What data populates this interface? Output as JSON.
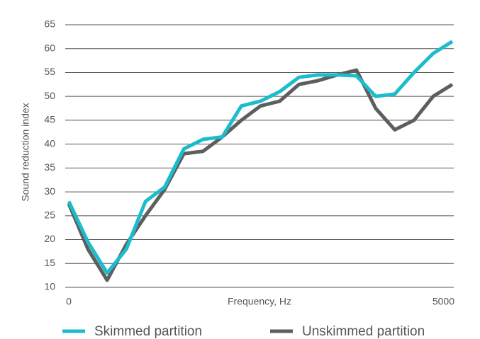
{
  "chart_data": {
    "type": "line",
    "x_label": "Frequency, Hz",
    "y_label": "Sound reduction index",
    "categories": [
      "0",
      null,
      null,
      null,
      null,
      null,
      null,
      null,
      null,
      null,
      null,
      null,
      null,
      null,
      null,
      null,
      null,
      null,
      null,
      null,
      "5000"
    ],
    "series": [
      {
        "name": "Skimmed partition",
        "color": "#1bbdcc",
        "values": [
          28,
          19.5,
          13,
          18,
          28,
          31,
          39,
          41,
          41.5,
          48,
          49,
          51,
          54,
          54.5,
          54.5,
          54.3,
          50,
          50.5,
          55,
          59,
          61.5
        ]
      },
      {
        "name": "Unskimmed partition",
        "color": "#5e5e5e",
        "values": [
          27.5,
          18,
          11.5,
          19,
          25,
          30.5,
          38,
          38.5,
          41.5,
          45,
          48,
          49,
          52.5,
          53.3,
          54.5,
          55.5,
          47.5,
          43,
          45,
          50,
          52.5
        ]
      }
    ],
    "ylim": [
      10,
      65
    ],
    "yticks": [
      10,
      15,
      20,
      25,
      30,
      35,
      40,
      45,
      50,
      55,
      60,
      65
    ],
    "grid": true,
    "legend": "bottom"
  }
}
